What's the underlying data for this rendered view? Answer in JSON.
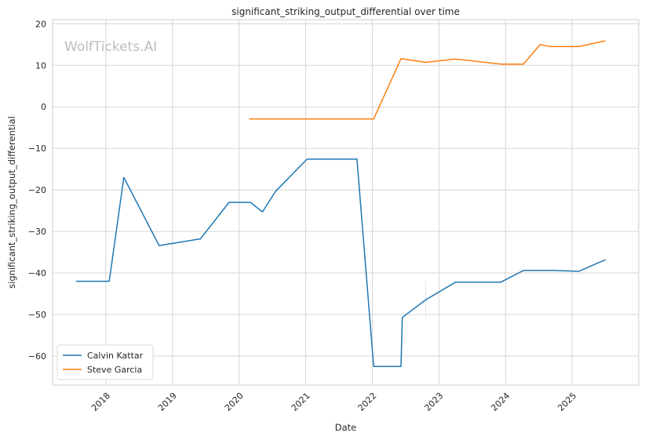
{
  "chart_data": {
    "type": "line",
    "title": "significant_striking_output_differential over time",
    "xlabel": "Date",
    "ylabel": "significant_striking_output_differential",
    "watermark": "WolfTickets.AI",
    "xlim": [
      2017.2,
      2026.0
    ],
    "ylim": [
      -67,
      21
    ],
    "x_ticks": [
      2018,
      2019,
      2020,
      2021,
      2022,
      2023,
      2024,
      2025
    ],
    "x_tick_labels": [
      "2018",
      "2019",
      "2020",
      "2021",
      "2022",
      "2023",
      "2024",
      "2025"
    ],
    "y_ticks": [
      20,
      10,
      0,
      -10,
      -20,
      -30,
      -40,
      -50,
      -60
    ],
    "y_tick_labels": [
      "20",
      "10",
      "0",
      "−10",
      "−20",
      "−30",
      "−40",
      "−50",
      "−60"
    ],
    "grid": true,
    "legend_position": "lower-left",
    "series": [
      {
        "name": "Calvin Kattar",
        "color": "#1f77b4",
        "x": [
          2017.55,
          2018.05,
          2018.27,
          2018.8,
          2019.42,
          2019.85,
          2020.17,
          2020.35,
          2020.55,
          2021.02,
          2021.77,
          2022.02,
          2022.43,
          2022.45,
          2022.8,
          2023.25,
          2023.93,
          2024.27,
          2024.7,
          2025.1,
          2025.5
        ],
        "values": [
          -42,
          -42,
          -17,
          -33.4,
          -31.8,
          -23,
          -23,
          -25.3,
          -20.3,
          -12.6,
          -12.6,
          -62.5,
          -62.5,
          -50.7,
          -46.5,
          -42.2,
          -42.2,
          -39.4,
          -39.4,
          -39.6,
          -36.8
        ]
      },
      {
        "name": "Steve Garcia",
        "color": "#ff7f0e",
        "x": [
          2020.15,
          2022.02,
          2022.43,
          2022.8,
          2023.25,
          2023.93,
          2024.27,
          2024.52,
          2024.67,
          2025.1,
          2025.5
        ],
        "values": [
          -2.9,
          -2.9,
          11.6,
          10.7,
          11.5,
          10.3,
          10.3,
          15.0,
          14.5,
          14.5,
          15.9
        ]
      }
    ]
  }
}
